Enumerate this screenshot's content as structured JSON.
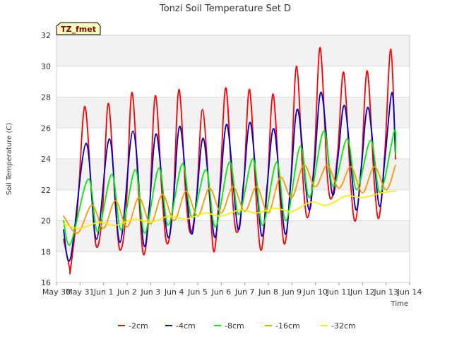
{
  "chart_data": {
    "type": "line",
    "title": "Tonzi Soil Temperature Set D",
    "xlabel": "Time",
    "ylabel": "Soil Temperature (C)",
    "badge": "TZ_fmet",
    "ylim": [
      16,
      32
    ],
    "xlim": [
      0,
      15
    ],
    "y_ticks": [
      16,
      18,
      20,
      22,
      24,
      26,
      28,
      30,
      32
    ],
    "x_ticks": [
      {
        "value": 0,
        "label": "May 30"
      },
      {
        "value": 1,
        "label": "May 31"
      },
      {
        "value": 2,
        "label": "Jun 1"
      },
      {
        "value": 3,
        "label": "Jun 2"
      },
      {
        "value": 4,
        "label": "Jun 3"
      },
      {
        "value": 5,
        "label": "Jun 4"
      },
      {
        "value": 6,
        "label": "Jun 5"
      },
      {
        "value": 7,
        "label": "Jun 6"
      },
      {
        "value": 8,
        "label": "Jun 7"
      },
      {
        "value": 9,
        "label": "Jun 8"
      },
      {
        "value": 10,
        "label": "Jun 9"
      },
      {
        "value": 11,
        "label": "Jun 10"
      },
      {
        "value": 12,
        "label": "Jun 11"
      },
      {
        "value": 13,
        "label": "Jun 12"
      },
      {
        "value": 14,
        "label": "Jun 13"
      },
      {
        "value": 15,
        "label": "Jun 14"
      }
    ],
    "grid": true,
    "legend_position": "bottom",
    "series": [
      {
        "name": "-2cm",
        "color": "#ff0000",
        "x": [
          0.3,
          0.55,
          0.6,
          0.9,
          1.2,
          1.5,
          1.7,
          1.95,
          2.2,
          2.5,
          2.7,
          2.95,
          3.2,
          3.5,
          3.7,
          3.95,
          4.2,
          4.5,
          4.7,
          4.95,
          5.2,
          5.5,
          5.7,
          5.95,
          6.2,
          6.5,
          6.7,
          6.95,
          7.2,
          7.5,
          7.7,
          7.95,
          8.2,
          8.5,
          8.7,
          8.95,
          9.2,
          9.5,
          9.7,
          9.95,
          10.2,
          10.5,
          10.7,
          10.95,
          11.2,
          11.5,
          11.7,
          11.95,
          12.2,
          12.5,
          12.7,
          12.95,
          13.2,
          13.5,
          13.7,
          13.95,
          14.2,
          14.4
        ],
        "y": [
          18.8,
          17.0,
          16.9,
          21.0,
          27.4,
          21.5,
          18.3,
          20.5,
          27.6,
          21.0,
          18.1,
          20.5,
          28.3,
          21.5,
          17.8,
          20.8,
          28.1,
          21.3,
          18.5,
          21.0,
          28.5,
          21.5,
          19.2,
          21.5,
          27.2,
          21.5,
          18.0,
          22.5,
          28.6,
          21.0,
          19.3,
          22.3,
          28.5,
          21.0,
          18.1,
          22.0,
          28.2,
          21.3,
          18.5,
          22.5,
          30.0,
          22.0,
          20.3,
          24.0,
          31.2,
          23.0,
          21.5,
          24.5,
          29.6,
          22.3,
          20.0,
          23.5,
          29.7,
          22.5,
          20.2,
          24.5,
          31.1,
          24.0
        ]
      },
      {
        "name": "-4cm",
        "color": "#0000cc",
        "x": [
          0.3,
          0.6,
          1.25,
          1.7,
          2.25,
          2.7,
          3.25,
          3.7,
          3.95,
          4.25,
          4.7,
          4.95,
          5.25,
          5.7,
          5.95,
          6.25,
          6.7,
          6.95,
          7.25,
          7.7,
          7.95,
          8.25,
          8.7,
          8.95,
          9.25,
          9.7,
          9.95,
          10.25,
          10.7,
          10.95,
          11.25,
          11.7,
          11.95,
          12.25,
          12.7,
          12.95,
          13.25,
          13.7,
          13.95,
          14.25,
          14.4
        ],
        "y": [
          19.4,
          17.6,
          25.0,
          18.8,
          25.3,
          18.6,
          25.8,
          18.5,
          21.0,
          25.6,
          19.1,
          21.0,
          26.1,
          19.3,
          21.5,
          25.3,
          19.0,
          22.0,
          26.2,
          19.5,
          22.5,
          26.3,
          19.1,
          22.3,
          25.9,
          19.2,
          22.5,
          27.2,
          20.8,
          23.5,
          28.3,
          21.8,
          24.0,
          27.4,
          20.8,
          23.5,
          27.3,
          21.0,
          24.0,
          28.3,
          24.3
        ]
      },
      {
        "name": "-8cm",
        "color": "#00ee00",
        "x": [
          0.3,
          0.6,
          1.35,
          1.75,
          2.35,
          2.75,
          3.35,
          3.75,
          4.35,
          4.75,
          5.35,
          5.75,
          6.35,
          6.75,
          7.35,
          7.75,
          8.35,
          8.75,
          9.35,
          9.75,
          10.35,
          10.75,
          11.35,
          11.75,
          12.35,
          12.75,
          13.35,
          13.75,
          14.35,
          14.4
        ],
        "y": [
          20.0,
          18.5,
          22.7,
          19.3,
          23.0,
          19.4,
          23.3,
          19.2,
          23.4,
          19.7,
          23.7,
          20.2,
          23.3,
          19.6,
          23.8,
          20.4,
          24.0,
          19.7,
          23.8,
          20.0,
          24.8,
          21.5,
          25.8,
          22.2,
          25.3,
          22.0,
          25.2,
          21.8,
          25.8,
          24.3
        ]
      },
      {
        "name": "-16cm",
        "color": "#ff9900",
        "x": [
          0.3,
          0.9,
          1.5,
          2.0,
          2.5,
          3.0,
          3.5,
          4.0,
          4.5,
          5.0,
          5.5,
          6.0,
          6.5,
          7.0,
          7.5,
          8.0,
          8.5,
          9.0,
          9.5,
          10.0,
          10.5,
          11.0,
          11.5,
          12.0,
          12.5,
          13.0,
          13.5,
          14.0,
          14.4
        ],
        "y": [
          20.3,
          19.2,
          21.0,
          19.5,
          21.3,
          19.6,
          21.5,
          19.8,
          21.7,
          20.0,
          21.9,
          20.3,
          22.1,
          20.5,
          22.2,
          20.6,
          22.2,
          20.5,
          22.8,
          21.5,
          23.6,
          22.2,
          23.6,
          22.1,
          23.5,
          21.8,
          23.5,
          22.0,
          23.6
        ]
      },
      {
        "name": "-32cm",
        "color": "#ffee00",
        "x": [
          0.3,
          1.0,
          1.8,
          2.5,
          3.3,
          4.0,
          4.8,
          5.5,
          6.3,
          7.0,
          7.8,
          8.5,
          9.3,
          10.0,
          10.8,
          11.5,
          12.3,
          13.0,
          13.8,
          14.4
        ],
        "y": [
          19.8,
          19.5,
          19.9,
          19.7,
          20.1,
          19.9,
          20.3,
          20.1,
          20.5,
          20.3,
          20.7,
          20.5,
          20.8,
          20.6,
          21.2,
          21.0,
          21.6,
          21.5,
          21.8,
          21.9
        ]
      }
    ]
  }
}
